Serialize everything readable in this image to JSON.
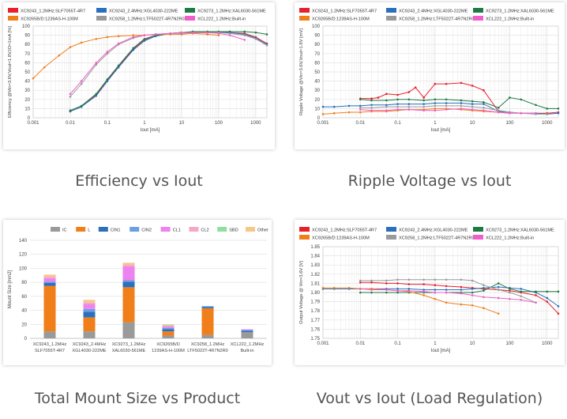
{
  "colors": {
    "red": "#e8202a",
    "blue": "#2c6fbf",
    "green": "#1e7a42",
    "orange": "#f07f1a",
    "gray": "#9a9a9a",
    "pink": "#f25ec8",
    "ltblue": "#6a9fe0",
    "violet": "#ee82ee",
    "ltpink": "#f7a6c8",
    "ltgreen": "#8ee0a0",
    "tan": "#f5c88a"
  },
  "captions": {
    "efficiency": "Efficiency vs Iout",
    "ripple": "Ripple Voltage vs Iout",
    "mount": "Total Mount Size vs Product",
    "vout": "Vout vs Iout (Load Regulation)"
  },
  "chart_data": [
    {
      "id": "efficiency",
      "type": "line",
      "title": "",
      "xlabel": "Iout [mA]",
      "ylabel": "Efficiency @Vin=3.6V,Vout=1.8V,IO=1mA [%]",
      "xscale": "log",
      "xlim": [
        0.001,
        2000
      ],
      "ylim": [
        0,
        100
      ],
      "yticks": [
        0,
        10,
        20,
        30,
        40,
        50,
        60,
        70,
        80,
        90,
        100
      ],
      "xticks": [
        0.001,
        0.01,
        0.1,
        1,
        10,
        100,
        1000
      ],
      "xticklabels": [
        "0.001",
        "0.01",
        "0.1",
        "1",
        "10",
        "100",
        "1000"
      ],
      "grid": true,
      "legend_position": "top",
      "series": [
        {
          "name": "XC9243_1.2MHz:SLF7055T-4R7",
          "color": "red",
          "x": [
            0.01,
            0.02,
            0.05,
            0.1,
            0.2,
            0.5,
            1,
            2,
            5,
            10,
            20,
            50,
            100,
            200,
            500,
            1000,
            2000
          ],
          "y": [
            7,
            12,
            25,
            41,
            56,
            75,
            85,
            90,
            92,
            93,
            93,
            93,
            93,
            93,
            92,
            88,
            81
          ]
        },
        {
          "name": "XC9243_2.4MHz:XGL4030-222ME",
          "color": "blue",
          "x": [
            0.01,
            0.02,
            0.05,
            0.1,
            0.2,
            0.5,
            1,
            2,
            5,
            10,
            20,
            50,
            100,
            200,
            500,
            1000,
            2000
          ],
          "y": [
            7,
            12,
            24,
            40,
            55,
            74,
            84,
            89,
            92,
            93,
            93,
            93,
            93,
            93,
            91,
            87,
            80
          ]
        },
        {
          "name": "XC9273_1.2MHz:XAL6030-561ME",
          "color": "green",
          "x": [
            0.01,
            0.02,
            0.05,
            0.1,
            0.2,
            0.5,
            1,
            2,
            5,
            10,
            20,
            50,
            100,
            200,
            500,
            1000,
            2000
          ],
          "y": [
            8,
            13,
            26,
            42,
            57,
            76,
            86,
            90,
            92,
            93,
            94,
            94,
            94,
            94,
            94,
            93,
            91
          ]
        },
        {
          "name": "XC9265B/D:1239AS-H-100M",
          "color": "orange",
          "x": [
            0.001,
            0.002,
            0.005,
            0.01,
            0.02,
            0.05,
            0.1,
            0.2,
            0.5,
            1,
            2,
            5,
            10,
            20,
            50,
            100
          ],
          "y": [
            43,
            55,
            68,
            77,
            82,
            86,
            88,
            89,
            90,
            90,
            91,
            91,
            91,
            92,
            91,
            90
          ]
        },
        {
          "name": "XC9258_1.2MHz:LTF5022T-4R7N2R0",
          "color": "gray",
          "x": [
            0.01,
            0.02,
            0.05,
            0.1,
            0.2,
            0.5,
            1,
            2,
            5,
            10,
            20,
            50,
            100,
            200,
            500,
            1000,
            2000
          ],
          "y": [
            23,
            37,
            58,
            70,
            80,
            87,
            90,
            91,
            92,
            93,
            93,
            93,
            93,
            92,
            90,
            86,
            79
          ]
        },
        {
          "name": "XCL222_1.2MHz:Built-in",
          "color": "pink",
          "x": [
            0.01,
            0.02,
            0.05,
            0.1,
            0.2,
            0.5,
            1,
            2,
            5,
            10,
            20,
            50,
            100,
            200,
            500
          ],
          "y": [
            26,
            40,
            60,
            72,
            81,
            88,
            90,
            91,
            92,
            92,
            93,
            93,
            92,
            90,
            85
          ]
        }
      ]
    },
    {
      "id": "ripple",
      "type": "line",
      "title": "",
      "xlabel": "Iout [mA]",
      "ylabel": "Ripple Voltage @Vin=3.6V,Vout=1.8V [mV]",
      "xscale": "log",
      "xlim": [
        0.001,
        2000
      ],
      "ylim": [
        0,
        100
      ],
      "yticks": [
        0,
        10,
        20,
        30,
        40,
        50,
        60,
        70,
        80,
        90,
        100
      ],
      "xticks": [
        0.001,
        0.01,
        0.1,
        1,
        10,
        100,
        1000
      ],
      "xticklabels": [
        "0.001",
        "0.01",
        "0.1",
        "1",
        "10",
        "100",
        "1000"
      ],
      "grid": true,
      "legend_position": "top",
      "series": [
        {
          "name": "XC9243_1.2MHz:SLF7055T-4R7",
          "color": "red",
          "x": [
            0.01,
            0.02,
            0.03,
            0.05,
            0.1,
            0.2,
            0.3,
            0.5,
            1,
            2,
            5,
            10,
            20,
            50,
            100,
            200,
            500,
            1000,
            2000
          ],
          "y": [
            21,
            21,
            22,
            26,
            25,
            28,
            33,
            22,
            37,
            37,
            38,
            35,
            30,
            7,
            6,
            5,
            5,
            5,
            6
          ]
        },
        {
          "name": "XC9243_2.4MHz:XGL4030-222ME",
          "color": "blue",
          "x": [
            0.001,
            0.002,
            0.005,
            0.01,
            0.02,
            0.05,
            0.1,
            0.2,
            0.5,
            1,
            2,
            5,
            10,
            20,
            50,
            100,
            200,
            500,
            1000,
            2000
          ],
          "y": [
            12,
            12,
            13,
            13,
            14,
            14,
            15,
            15,
            15,
            16,
            16,
            16,
            15,
            15,
            7,
            6,
            5,
            5,
            4,
            5
          ]
        },
        {
          "name": "XC9273_1.2MHz:XAL6030-561ME",
          "color": "green",
          "x": [
            0.01,
            0.02,
            0.05,
            0.1,
            0.2,
            0.5,
            1,
            2,
            5,
            10,
            20,
            50,
            100,
            200,
            500,
            1000,
            2000
          ],
          "y": [
            20,
            19,
            19,
            20,
            20,
            19,
            20,
            20,
            19,
            18,
            17,
            11,
            22,
            20,
            14,
            10,
            10
          ]
        },
        {
          "name": "XC9265B/D:1239AS-H-100M",
          "color": "orange",
          "x": [
            0.001,
            0.002,
            0.005,
            0.01,
            0.02,
            0.05,
            0.1,
            0.2,
            0.5,
            1,
            2,
            5,
            10,
            20,
            50,
            100
          ],
          "y": [
            4,
            5,
            6,
            6,
            7,
            7,
            8,
            9,
            9,
            10,
            10,
            9,
            8,
            7,
            6,
            5
          ]
        },
        {
          "name": "XC9258_1.2MHz:LTF5022T-4R7N2R0",
          "color": "gray",
          "x": [
            0.01,
            0.02,
            0.05,
            0.1,
            0.2,
            0.5,
            1,
            2,
            5,
            10,
            20,
            50,
            100,
            200,
            500,
            1000
          ],
          "y": [
            11,
            11,
            12,
            12,
            12,
            12,
            13,
            13,
            13,
            12,
            11,
            8,
            6,
            5,
            4,
            4
          ]
        },
        {
          "name": "XCL222_1.2MHz:Built-in",
          "color": "pink",
          "x": [
            0.01,
            0.02,
            0.05,
            0.1,
            0.2,
            0.5,
            1,
            2,
            5,
            10,
            20,
            50,
            100,
            200,
            500
          ],
          "y": [
            9,
            8,
            8,
            9,
            9,
            8,
            8,
            9,
            10,
            9,
            8,
            6,
            5,
            5,
            5
          ]
        }
      ]
    },
    {
      "id": "mount",
      "type": "bar",
      "stacked": true,
      "title": "",
      "xlabel": "",
      "ylabel": "Mount Size [mm2]",
      "ylim": [
        0,
        140
      ],
      "yticks": [
        0,
        20,
        40,
        60,
        80,
        100,
        120,
        140
      ],
      "grid": true,
      "legend_position": "top",
      "categories": [
        [
          "XC9243_1.2MHz",
          "SLF7055T-4R7"
        ],
        [
          "XC9243_2.4MHz",
          "XGL4030-222ME"
        ],
        [
          "XC9273_1.2MHz",
          "XAL6030-561ME"
        ],
        [
          "XC9265B/D",
          "1239AS-H-100M"
        ],
        [
          "XC9258_1.2MHz",
          "LTF5022T-4R7N2R0"
        ],
        [
          "XCL222_1.2MHz",
          "Built-in"
        ]
      ],
      "series": [
        {
          "name": "IC",
          "color": "gray",
          "values": [
            10,
            10,
            23,
            4,
            5,
            9
          ]
        },
        {
          "name": "L",
          "color": "orange",
          "values": [
            65,
            20,
            50,
            6,
            38,
            0
          ]
        },
        {
          "name": "CIN1",
          "color": "blue",
          "values": [
            4,
            8,
            8,
            3,
            2,
            2
          ]
        },
        {
          "name": "CIN2",
          "color": "ltblue",
          "values": [
            2,
            4,
            2,
            2,
            1,
            1
          ]
        },
        {
          "name": "CL1",
          "color": "violet",
          "values": [
            5,
            7,
            20,
            2,
            0,
            1
          ]
        },
        {
          "name": "CL2",
          "color": "ltpink",
          "values": [
            2,
            2,
            2,
            1,
            0,
            0
          ]
        },
        {
          "name": "SBD",
          "color": "ltgreen",
          "values": [
            0,
            0,
            0,
            1,
            0,
            0
          ]
        },
        {
          "name": "Other",
          "color": "tan",
          "values": [
            3,
            4,
            3,
            1,
            0,
            0
          ]
        }
      ]
    },
    {
      "id": "vout",
      "type": "line",
      "title": "",
      "xlabel": "Iout [mA]",
      "ylabel": "Output Voltage @ Vin=3.6V [V]",
      "xscale": "log",
      "xlim": [
        0.001,
        2000
      ],
      "ylim": [
        1.75,
        1.85
      ],
      "yticks": [
        1.75,
        1.76,
        1.77,
        1.78,
        1.79,
        1.8,
        1.81,
        1.82,
        1.83,
        1.84,
        1.85
      ],
      "yticklabels": [
        "1.75",
        "1.76",
        "1.77",
        "1.78",
        "1.79",
        "1.80",
        "1.81",
        "1.82",
        "1.83",
        "1.84",
        "1.85"
      ],
      "xticks": [
        0.001,
        0.01,
        0.1,
        1,
        10,
        100,
        1000
      ],
      "xticklabels": [
        "0.001",
        "0.01",
        "0.1",
        "1",
        "10",
        "100",
        "1000"
      ],
      "grid": true,
      "legend_position": "top",
      "series": [
        {
          "name": "XC9243_1.2MHz:SLF7055T-4R7",
          "color": "red",
          "x": [
            0.01,
            0.02,
            0.05,
            0.1,
            0.2,
            0.5,
            1,
            2,
            5,
            10,
            20,
            50,
            100,
            200,
            500,
            1000,
            2000
          ],
          "y": [
            1.811,
            1.811,
            1.81,
            1.81,
            1.809,
            1.809,
            1.808,
            1.807,
            1.806,
            1.805,
            1.804,
            1.803,
            1.802,
            1.8,
            1.797,
            1.79,
            1.777
          ]
        },
        {
          "name": "XC9243_2.4MHz:XGL4030-222ME",
          "color": "blue",
          "x": [
            0.001,
            0.002,
            0.005,
            0.01,
            0.02,
            0.05,
            0.1,
            0.2,
            0.5,
            1,
            2,
            5,
            10,
            20,
            50,
            100,
            200,
            500,
            1000,
            2000
          ],
          "y": [
            1.804,
            1.804,
            1.804,
            1.804,
            1.804,
            1.804,
            1.804,
            1.804,
            1.803,
            1.803,
            1.803,
            1.803,
            1.804,
            1.805,
            1.806,
            1.805,
            1.804,
            1.8,
            1.794,
            1.785
          ]
        },
        {
          "name": "XC9273_1.2MHz:XAL6030-561ME",
          "color": "green",
          "x": [
            0.01,
            0.02,
            0.05,
            0.1,
            0.2,
            0.5,
            1,
            2,
            5,
            10,
            20,
            50,
            100,
            200,
            500,
            1000,
            2000
          ],
          "y": [
            1.8,
            1.8,
            1.8,
            1.8,
            1.8,
            1.8,
            1.8,
            1.8,
            1.8,
            1.8,
            1.802,
            1.81,
            1.804,
            1.801,
            1.801,
            1.801,
            1.801
          ]
        },
        {
          "name": "XC9265B/D:1239AS-H-100M",
          "color": "orange",
          "x": [
            0.001,
            0.002,
            0.005,
            0.01,
            0.02,
            0.05,
            0.1,
            0.2,
            0.5,
            1,
            2,
            5,
            10,
            20,
            50
          ],
          "y": [
            1.805,
            1.805,
            1.805,
            1.804,
            1.804,
            1.803,
            1.802,
            1.801,
            1.797,
            1.793,
            1.789,
            1.787,
            1.786,
            1.783,
            1.777
          ]
        },
        {
          "name": "XC9258_1.2MHz:LTF5022T-4R7N2R0",
          "color": "gray",
          "x": [
            0.01,
            0.02,
            0.05,
            0.1,
            0.2,
            0.5,
            1,
            2,
            5,
            10,
            20,
            50,
            100,
            200,
            500
          ],
          "y": [
            1.813,
            1.813,
            1.813,
            1.814,
            1.814,
            1.814,
            1.814,
            1.814,
            1.814,
            1.813,
            1.808,
            1.803,
            1.8,
            1.796,
            1.789
          ]
        },
        {
          "name": "XCL222_1.2MHz:Built-in",
          "color": "pink",
          "x": [
            0.01,
            0.02,
            0.05,
            0.1,
            0.2,
            0.5,
            1,
            2,
            5,
            10,
            20,
            50,
            100,
            200,
            500
          ],
          "y": [
            1.804,
            1.803,
            1.803,
            1.802,
            1.802,
            1.801,
            1.8,
            1.8,
            1.799,
            1.797,
            1.795,
            1.794,
            1.793,
            1.792,
            1.789
          ]
        }
      ]
    }
  ]
}
